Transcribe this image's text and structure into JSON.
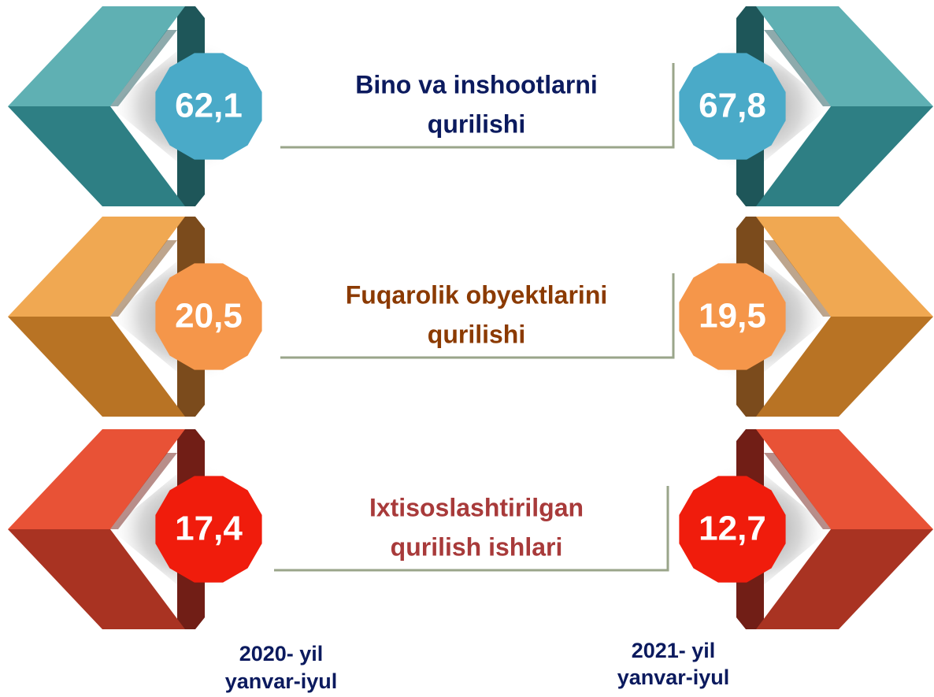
{
  "rows": [
    {
      "title": [
        "Bino va inshootlarni",
        "qurilishi"
      ],
      "value_2020": "62,1",
      "value_2021": "67,8"
    },
    {
      "title": [
        "Fuqarolik obyektlarini",
        "qurilishi"
      ],
      "value_2020": "20,5",
      "value_2021": "19,5"
    },
    {
      "title": [
        "Ixtisoslashtirilgan",
        "qurilish ishlari"
      ],
      "value_2020": "17,4",
      "value_2021": "12,7"
    }
  ],
  "footer": {
    "left": [
      "2020- yil",
      "yanvar-iyul"
    ],
    "right": [
      "2021- yil",
      "yanvar-iyul"
    ]
  }
}
